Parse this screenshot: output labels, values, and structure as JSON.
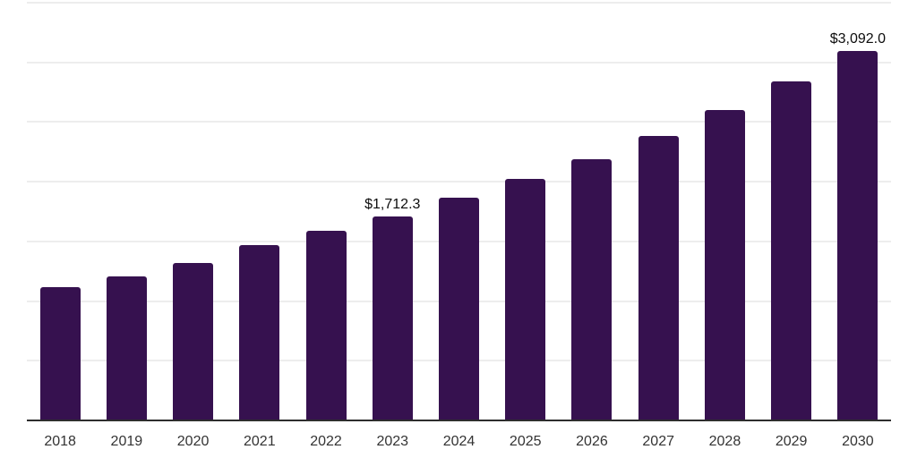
{
  "chart_data": {
    "type": "bar",
    "title": "",
    "xlabel": "",
    "ylabel": "",
    "categories": [
      "2018",
      "2019",
      "2020",
      "2021",
      "2022",
      "2023",
      "2024",
      "2025",
      "2026",
      "2027",
      "2028",
      "2029",
      "2030"
    ],
    "values": [
      1117,
      1207,
      1319,
      1469,
      1589,
      1712.3,
      1866,
      2024,
      2189,
      2384,
      2601,
      2841,
      3092.0
    ],
    "data_labels": [
      {
        "category": "2023",
        "text": "$1,712.3"
      },
      {
        "category": "2030",
        "text": "$3,092.0"
      }
    ],
    "ylim": [
      0,
      3500
    ],
    "grid": true,
    "grid_step": 500,
    "y_tick_labels_visible": false,
    "legend_position": "none",
    "colors": {
      "bar": "#36114f",
      "gridline": "#ededed",
      "axis_line": "#2e2e2e",
      "data_label": "#0d0d0d",
      "tick_label": "#333333",
      "background": "#ffffff"
    }
  }
}
